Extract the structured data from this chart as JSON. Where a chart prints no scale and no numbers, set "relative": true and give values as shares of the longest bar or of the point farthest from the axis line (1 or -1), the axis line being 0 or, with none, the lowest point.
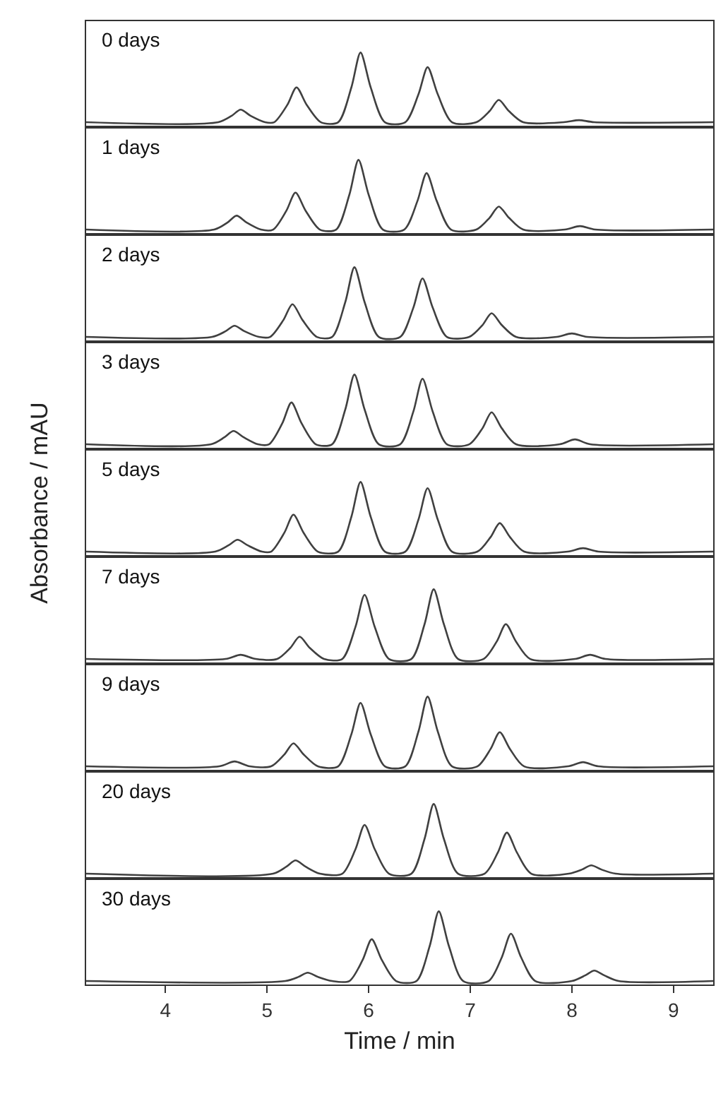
{
  "chart_data": [
    {
      "type": "line",
      "title": "0 days",
      "relative": true,
      "xlim": [
        3.22,
        9.39
      ],
      "xticks": [
        4,
        5,
        6,
        7,
        8,
        9
      ],
      "tick_labels": false,
      "x": [
        3.22,
        4.52,
        4.65,
        4.74,
        4.84,
        4.98,
        5.07,
        5.2,
        5.29,
        5.39,
        5.53,
        5.7,
        5.83,
        5.92,
        6.02,
        6.16,
        6.36,
        6.49,
        6.58,
        6.68,
        6.82,
        7.06,
        7.19,
        7.28,
        7.38,
        7.52,
        7.92,
        8.07,
        8.22,
        9.39
      ],
      "series": [
        {
          "color": "#404040",
          "values": [
            0,
            0,
            0.09,
            0.18,
            0.09,
            0,
            0,
            0.25,
            0.5,
            0.25,
            0,
            0,
            0.5,
            1,
            0.5,
            0,
            0,
            0.4,
            0.79,
            0.4,
            0,
            0,
            0.16,
            0.32,
            0.16,
            0,
            0,
            0.03,
            0,
            0
          ]
        }
      ]
    },
    {
      "type": "line",
      "title": "1 days",
      "relative": true,
      "xlim": [
        3.22,
        9.39
      ],
      "xticks": [
        4,
        5,
        6,
        7,
        8,
        9
      ],
      "tick_labels": false,
      "x": [
        3.22,
        4.48,
        4.61,
        4.7,
        4.8,
        4.94,
        5.06,
        5.19,
        5.28,
        5.38,
        5.52,
        5.68,
        5.81,
        5.9,
        6.0,
        6.14,
        6.35,
        6.48,
        6.57,
        6.67,
        6.81,
        7.06,
        7.19,
        7.28,
        7.38,
        7.52,
        7.93,
        8.08,
        8.23,
        9.39
      ],
      "series": [
        {
          "color": "#404040",
          "values": [
            0,
            0,
            0.1,
            0.2,
            0.1,
            0,
            0,
            0.27,
            0.53,
            0.27,
            0,
            0,
            0.5,
            1,
            0.5,
            0,
            0,
            0.41,
            0.81,
            0.41,
            0,
            0,
            0.17,
            0.33,
            0.17,
            0,
            0,
            0.05,
            0,
            0
          ]
        }
      ]
    },
    {
      "type": "line",
      "title": "2 days",
      "relative": true,
      "xlim": [
        3.22,
        9.39
      ],
      "xticks": [
        4,
        5,
        6,
        7,
        8,
        9
      ],
      "tick_labels": false,
      "x": [
        3.22,
        4.46,
        4.59,
        4.68,
        4.78,
        4.92,
        5.03,
        5.16,
        5.25,
        5.35,
        5.49,
        5.64,
        5.77,
        5.86,
        5.96,
        6.1,
        6.31,
        6.44,
        6.53,
        6.63,
        6.77,
        6.99,
        7.12,
        7.21,
        7.31,
        7.45,
        7.85,
        8.0,
        8.15,
        9.39
      ],
      "series": [
        {
          "color": "#404040",
          "values": [
            0,
            0,
            0.08,
            0.16,
            0.08,
            0,
            0,
            0.24,
            0.47,
            0.24,
            0,
            0,
            0.5,
            1,
            0.5,
            0,
            0,
            0.42,
            0.84,
            0.42,
            0,
            0,
            0.17,
            0.34,
            0.17,
            0,
            0,
            0.05,
            0,
            0
          ]
        }
      ]
    },
    {
      "type": "line",
      "title": "3 days",
      "relative": true,
      "xlim": [
        3.22,
        9.39
      ],
      "xticks": [
        4,
        5,
        6,
        7,
        8,
        9
      ],
      "tick_labels": false,
      "x": [
        3.22,
        4.45,
        4.58,
        4.67,
        4.77,
        4.91,
        5.02,
        5.15,
        5.24,
        5.34,
        5.48,
        5.64,
        5.77,
        5.86,
        5.96,
        6.1,
        6.31,
        6.44,
        6.53,
        6.63,
        6.77,
        6.99,
        7.12,
        7.21,
        7.31,
        7.45,
        7.88,
        8.03,
        8.18,
        9.39
      ],
      "series": [
        {
          "color": "#404040",
          "values": [
            0,
            0,
            0.1,
            0.19,
            0.1,
            0,
            0,
            0.3,
            0.6,
            0.3,
            0,
            0,
            0.5,
            1,
            0.5,
            0,
            0,
            0.47,
            0.94,
            0.47,
            0,
            0,
            0.23,
            0.46,
            0.23,
            0,
            0,
            0.07,
            0,
            0
          ]
        }
      ]
    },
    {
      "type": "line",
      "title": "5 days",
      "ylabel": "Absorbance / mAU",
      "relative": true,
      "xlim": [
        3.22,
        9.39
      ],
      "xticks": [
        4,
        5,
        6,
        7,
        8,
        9
      ],
      "tick_labels": false,
      "x": [
        3.22,
        4.49,
        4.62,
        4.71,
        4.81,
        4.95,
        5.04,
        5.17,
        5.26,
        5.36,
        5.5,
        5.7,
        5.83,
        5.92,
        6.02,
        6.16,
        6.36,
        6.49,
        6.58,
        6.68,
        6.82,
        7.07,
        7.2,
        7.29,
        7.39,
        7.53,
        7.96,
        8.11,
        8.26,
        9.39
      ],
      "series": [
        {
          "color": "#404040",
          "values": [
            0,
            0,
            0.09,
            0.17,
            0.09,
            0,
            0,
            0.27,
            0.53,
            0.27,
            0,
            0,
            0.5,
            1,
            0.5,
            0,
            0,
            0.46,
            0.91,
            0.46,
            0,
            0,
            0.21,
            0.41,
            0.21,
            0,
            0,
            0.05,
            0,
            0
          ]
        }
      ]
    },
    {
      "type": "line",
      "title": "7 days",
      "relative": true,
      "xlim": [
        3.22,
        9.39
      ],
      "xticks": [
        4,
        5,
        6,
        7,
        8,
        9
      ],
      "tick_labels": false,
      "x": [
        3.22,
        4.59,
        4.74,
        4.89,
        5.1,
        5.23,
        5.32,
        5.42,
        5.56,
        5.74,
        5.87,
        5.96,
        6.06,
        6.2,
        6.42,
        6.55,
        6.64,
        6.74,
        6.88,
        7.13,
        7.26,
        7.35,
        7.45,
        7.59,
        8.03,
        8.18,
        8.33,
        9.39
      ],
      "series": [
        {
          "color": "#404040",
          "values": [
            0,
            0,
            0.06,
            0,
            0,
            0.16,
            0.32,
            0.16,
            0,
            0,
            0.46,
            0.92,
            0.46,
            0,
            0,
            0.5,
            1,
            0.5,
            0,
            0,
            0.25,
            0.5,
            0.25,
            0,
            0,
            0.06,
            0,
            0
          ]
        }
      ]
    },
    {
      "type": "line",
      "title": "9 days",
      "relative": true,
      "xlim": [
        3.22,
        9.39
      ],
      "xticks": [
        4,
        5,
        6,
        7,
        8,
        9
      ],
      "tick_labels": false,
      "x": [
        3.22,
        4.53,
        4.68,
        4.83,
        5.04,
        5.17,
        5.26,
        5.36,
        5.5,
        5.7,
        5.83,
        5.92,
        6.02,
        6.16,
        6.36,
        6.49,
        6.58,
        6.68,
        6.82,
        7.07,
        7.2,
        7.29,
        7.39,
        7.53,
        7.96,
        8.11,
        8.26,
        9.39
      ],
      "series": [
        {
          "color": "#404040",
          "values": [
            0,
            0,
            0.07,
            0,
            0,
            0.17,
            0.33,
            0.17,
            0,
            0,
            0.46,
            0.91,
            0.46,
            0,
            0,
            0.5,
            1,
            0.5,
            0,
            0,
            0.25,
            0.49,
            0.25,
            0,
            0,
            0.06,
            0,
            0
          ]
        }
      ]
    },
    {
      "type": "line",
      "title": "20 days",
      "relative": true,
      "xlim": [
        3.22,
        9.39
      ],
      "xticks": [
        4,
        5,
        6,
        7,
        8,
        9
      ],
      "tick_labels": false,
      "x": [
        3.22,
        5.06,
        5.19,
        5.28,
        5.38,
        5.52,
        5.74,
        5.87,
        5.96,
        6.06,
        6.2,
        6.42,
        6.55,
        6.64,
        6.74,
        6.88,
        7.14,
        7.27,
        7.36,
        7.46,
        7.6,
        7.97,
        8.1,
        8.19,
        8.29,
        8.43,
        9.39
      ],
      "series": [
        {
          "color": "#404040",
          "values": [
            0,
            0,
            0.1,
            0.19,
            0.1,
            0,
            0,
            0.35,
            0.7,
            0.35,
            0,
            0,
            0.5,
            1,
            0.5,
            0,
            0,
            0.3,
            0.59,
            0.3,
            0,
            0,
            0.06,
            0.12,
            0.06,
            0,
            0
          ]
        }
      ]
    },
    {
      "type": "line",
      "title": "30 days",
      "xlabel": "Time / min",
      "relative": true,
      "xlim": [
        3.22,
        9.39
      ],
      "xticks": [
        4,
        5,
        6,
        7,
        8,
        9
      ],
      "tick_labels": "x",
      "x": [
        3.22,
        5.18,
        5.31,
        5.4,
        5.5,
        5.64,
        5.81,
        5.94,
        6.03,
        6.13,
        6.27,
        6.47,
        6.6,
        6.69,
        6.79,
        6.93,
        7.18,
        7.31,
        7.4,
        7.5,
        7.64,
        8.0,
        8.13,
        8.22,
        8.32,
        8.46,
        9.39
      ],
      "series": [
        {
          "color": "#404040",
          "values": [
            0,
            0,
            0.06,
            0.12,
            0.06,
            0,
            0,
            0.3,
            0.6,
            0.3,
            0,
            0,
            0.5,
            1,
            0.5,
            0,
            0,
            0.34,
            0.68,
            0.34,
            0,
            0,
            0.08,
            0.15,
            0.08,
            0,
            0
          ]
        }
      ]
    }
  ]
}
